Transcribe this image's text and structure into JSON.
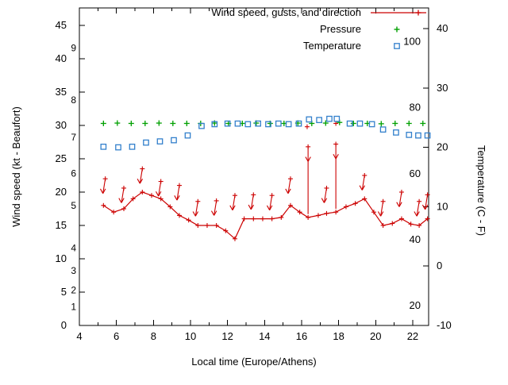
{
  "chart_data": {
    "type": "line",
    "title": "",
    "xlabel": "Local time (Europe/Athens)",
    "ylabel_left": "Wind speed (kt - Beaufort)",
    "ylabel_right": "Temperature (C - F)",
    "background": "#ffffff",
    "axes": {
      "x": {
        "lim": [
          4,
          22.86
        ],
        "major_ticks": [
          4,
          6,
          8,
          10,
          12,
          14,
          16,
          18,
          20,
          22
        ],
        "minor_ticks": [
          5,
          7,
          9,
          11,
          13,
          15,
          17,
          19,
          21
        ]
      },
      "wind_kt": {
        "lim": [
          0,
          47.6
        ],
        "ticks": [
          0,
          5,
          10,
          15,
          20,
          25,
          30,
          35,
          40,
          45
        ]
      },
      "beaufort_labels": [
        [
          "1",
          2.8
        ],
        [
          "2",
          5.3
        ],
        [
          "3",
          8.2
        ],
        [
          "4",
          11.6
        ],
        [
          "5",
          18
        ],
        [
          "6",
          22.8
        ],
        [
          "7",
          28.2
        ],
        [
          "8",
          33.8
        ],
        [
          "9",
          41.6
        ]
      ],
      "celsius": {
        "lim": [
          -10,
          43.5
        ],
        "ticks": [
          40,
          30,
          20,
          10,
          0,
          -10
        ]
      },
      "fahrenheit_labels": [
        100,
        80,
        60,
        40,
        20
      ]
    },
    "legend": [
      {
        "label": "Wind speed, gusts, and direction",
        "marker": "line-plus",
        "color": "#cc0000"
      },
      {
        "label": "Pressure",
        "marker": "plus",
        "color": "#00a000"
      },
      {
        "label": "Temperature",
        "marker": "square",
        "color": "#3380cc"
      }
    ],
    "series": {
      "wind_speed_kt": [
        [
          5.3,
          18
        ],
        [
          5.85,
          17
        ],
        [
          6.4,
          17.5
        ],
        [
          6.9,
          19
        ],
        [
          7.4,
          20
        ],
        [
          7.9,
          19.5
        ],
        [
          8.4,
          19
        ],
        [
          8.9,
          17.8
        ],
        [
          9.4,
          16.5
        ],
        [
          9.9,
          15.8
        ],
        [
          10.4,
          15
        ],
        [
          10.9,
          15
        ],
        [
          11.4,
          15
        ],
        [
          11.9,
          14.2
        ],
        [
          12.4,
          13
        ],
        [
          12.9,
          16
        ],
        [
          13.4,
          16
        ],
        [
          13.9,
          16
        ],
        [
          14.4,
          16
        ],
        [
          14.9,
          16.2
        ],
        [
          15.4,
          18
        ],
        [
          15.9,
          17
        ],
        [
          16.35,
          16.2
        ],
        [
          16.9,
          16.5
        ],
        [
          17.35,
          16.8
        ],
        [
          17.85,
          17
        ],
        [
          18.4,
          17.8
        ],
        [
          18.9,
          18.3
        ],
        [
          19.4,
          19
        ],
        [
          19.9,
          17
        ],
        [
          20.4,
          15
        ],
        [
          20.9,
          15.3
        ],
        [
          21.4,
          16
        ],
        [
          21.9,
          15.2
        ],
        [
          22.35,
          15
        ],
        [
          22.8,
          16
        ]
      ],
      "wind_gusts_kt": [
        [
          5.4,
          22
        ],
        [
          6.4,
          20.6
        ],
        [
          7.4,
          23.5
        ],
        [
          8.4,
          21.6
        ],
        [
          9.4,
          21
        ],
        [
          10.4,
          18.6
        ],
        [
          11.4,
          18.7
        ],
        [
          12.4,
          19.5
        ],
        [
          13.4,
          19.6
        ],
        [
          14.4,
          19.5
        ],
        [
          15.4,
          22
        ],
        [
          16.35,
          26.8
        ],
        [
          17.35,
          20.6
        ],
        [
          17.85,
          27.2
        ],
        [
          19.4,
          22.5
        ],
        [
          20.4,
          18.6
        ],
        [
          21.4,
          20
        ],
        [
          22.35,
          18.6
        ],
        [
          22.8,
          19.6
        ]
      ],
      "gust_peaks_kt": [
        [
          16.3,
          29.8
        ],
        [
          17.85,
          30.3
        ]
      ],
      "pressure_plotted": [
        [
          5.3,
          30.3
        ],
        [
          6.05,
          30.35
        ],
        [
          6.8,
          30.3
        ],
        [
          7.55,
          30.3
        ],
        [
          8.3,
          30.35
        ],
        [
          9.05,
          30.3
        ],
        [
          9.8,
          30.3
        ],
        [
          10.55,
          30.3
        ],
        [
          11.3,
          30.35
        ],
        [
          12.05,
          30.3
        ],
        [
          12.8,
          30.3
        ],
        [
          13.55,
          30.35
        ],
        [
          14.3,
          30.3
        ],
        [
          15.05,
          30.3
        ],
        [
          15.8,
          30.35
        ],
        [
          16.55,
          30.3
        ],
        [
          17.3,
          30.35
        ],
        [
          18.05,
          30.45
        ],
        [
          18.8,
          30.3
        ],
        [
          19.55,
          30.3
        ],
        [
          20.3,
          30.25
        ],
        [
          21.05,
          30.3
        ],
        [
          21.8,
          30.3
        ],
        [
          22.55,
          30.3
        ]
      ],
      "temperature_c": [
        [
          5.3,
          20.1
        ],
        [
          6.1,
          20.0
        ],
        [
          6.85,
          20.1
        ],
        [
          7.6,
          20.8
        ],
        [
          8.35,
          21.0
        ],
        [
          9.1,
          21.2
        ],
        [
          9.85,
          22.0
        ],
        [
          10.6,
          23.6
        ],
        [
          11.3,
          23.9
        ],
        [
          12.0,
          24.0
        ],
        [
          12.55,
          24.0
        ],
        [
          13.1,
          23.9
        ],
        [
          13.65,
          24.0
        ],
        [
          14.2,
          23.9
        ],
        [
          14.75,
          24.0
        ],
        [
          15.3,
          23.9
        ],
        [
          15.85,
          24.0
        ],
        [
          16.4,
          24.7
        ],
        [
          16.95,
          24.6
        ],
        [
          17.5,
          24.8
        ],
        [
          17.9,
          24.8
        ],
        [
          18.6,
          24.0
        ],
        [
          19.15,
          24.0
        ],
        [
          19.8,
          23.9
        ],
        [
          20.4,
          23.0
        ],
        [
          21.1,
          22.5
        ],
        [
          21.8,
          22.1
        ],
        [
          22.3,
          22.0
        ],
        [
          22.8,
          22.0
        ]
      ]
    }
  }
}
